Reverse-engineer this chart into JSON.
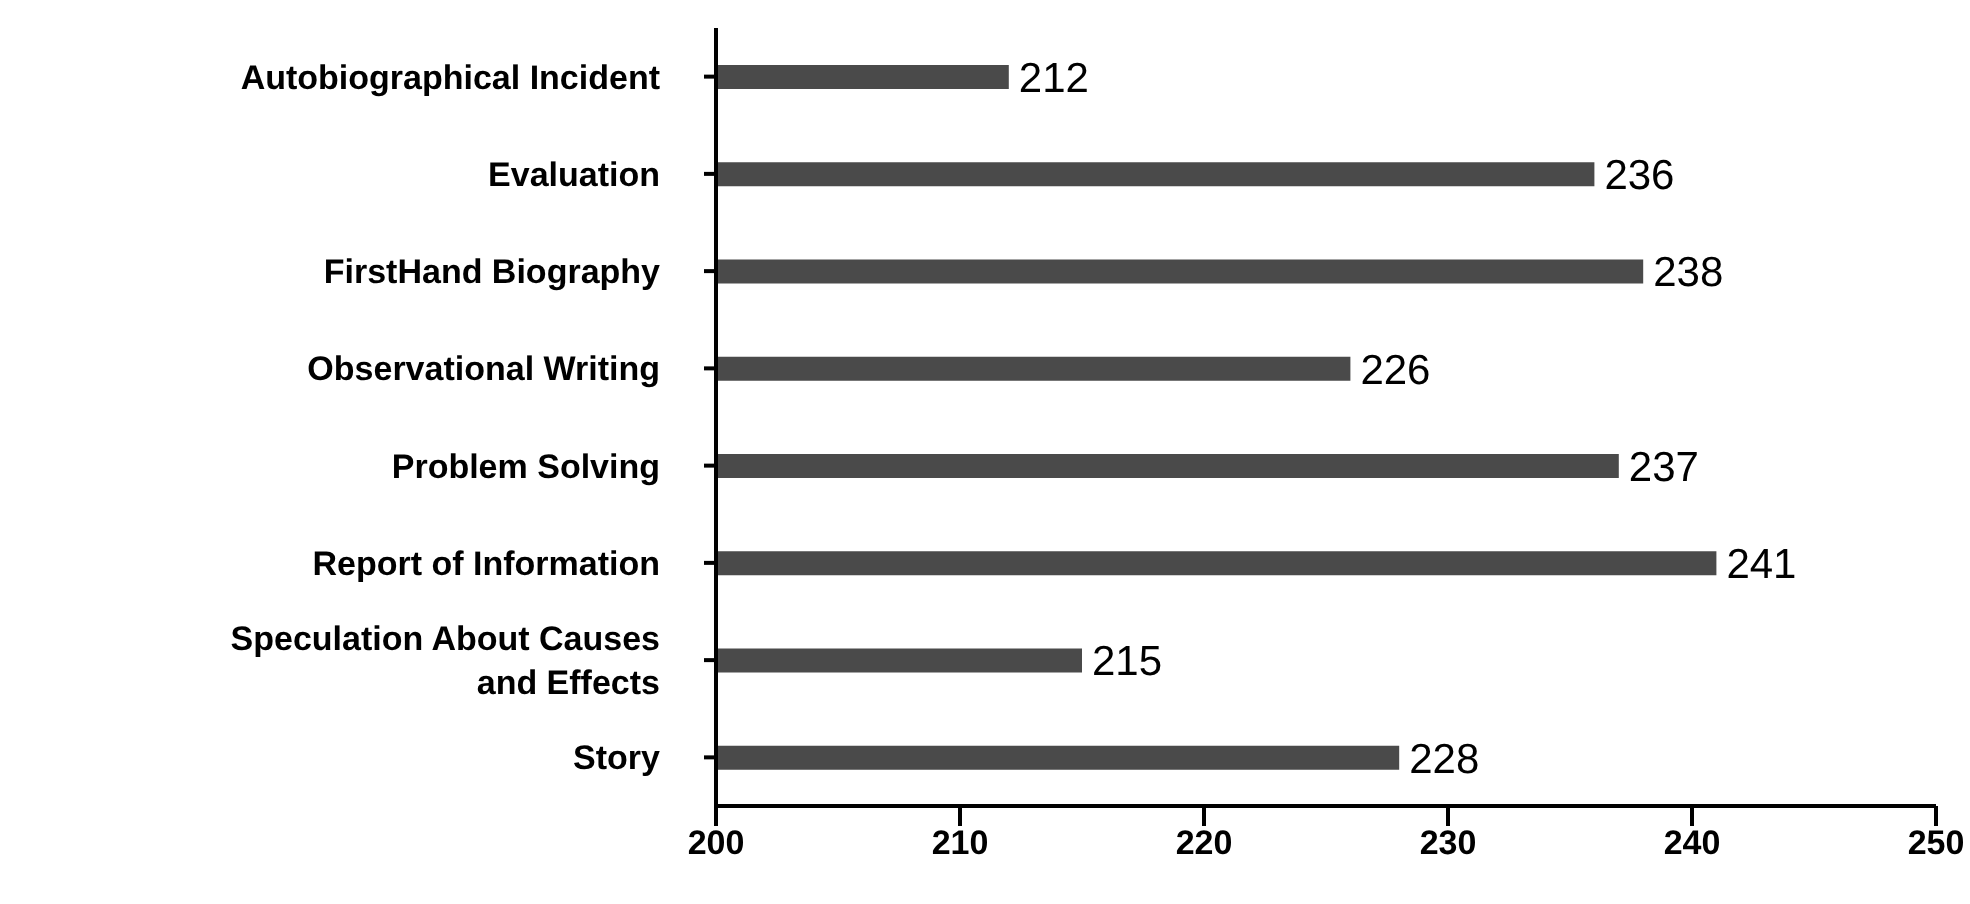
{
  "chart_data": {
    "type": "bar",
    "orientation": "horizontal",
    "categories": [
      "Autobiographical Incident",
      "Evaluation",
      "FirstHand Biography",
      "Observational Writing",
      "Problem Solving",
      "Report of Information",
      "Speculation About Causes and Effects",
      "Story"
    ],
    "values": [
      212,
      236,
      238,
      226,
      237,
      241,
      215,
      228
    ],
    "color": "#4a4a4a",
    "xlim": [
      200,
      250
    ],
    "xticks": [
      200,
      210,
      220,
      230,
      240,
      250
    ],
    "data_labels": true,
    "grid": false,
    "legend": false
  }
}
